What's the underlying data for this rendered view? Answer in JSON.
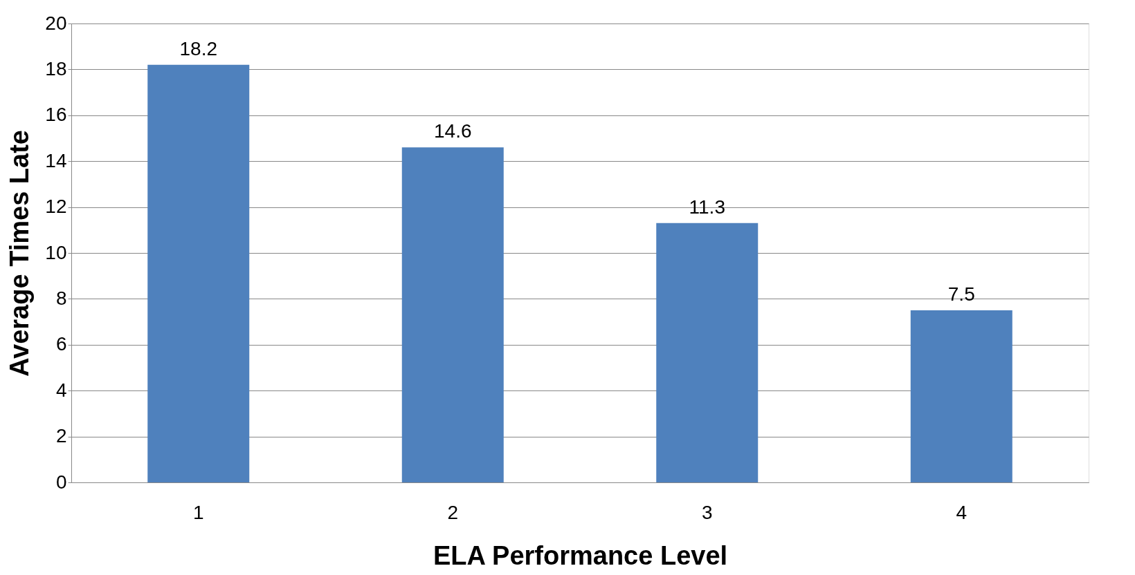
{
  "chart_data": {
    "type": "bar",
    "xlabel": "ELA Performance Level",
    "ylabel": "Average Times Late",
    "categories": [
      "1",
      "2",
      "3",
      "4"
    ],
    "values": [
      18.2,
      14.6,
      11.3,
      7.5
    ],
    "color": "#4f81bd",
    "ylim": [
      0,
      20
    ],
    "yticks": [
      0,
      2,
      4,
      6,
      8,
      10,
      12,
      14,
      16,
      18,
      20
    ],
    "grid": "y",
    "data_labels": true
  }
}
